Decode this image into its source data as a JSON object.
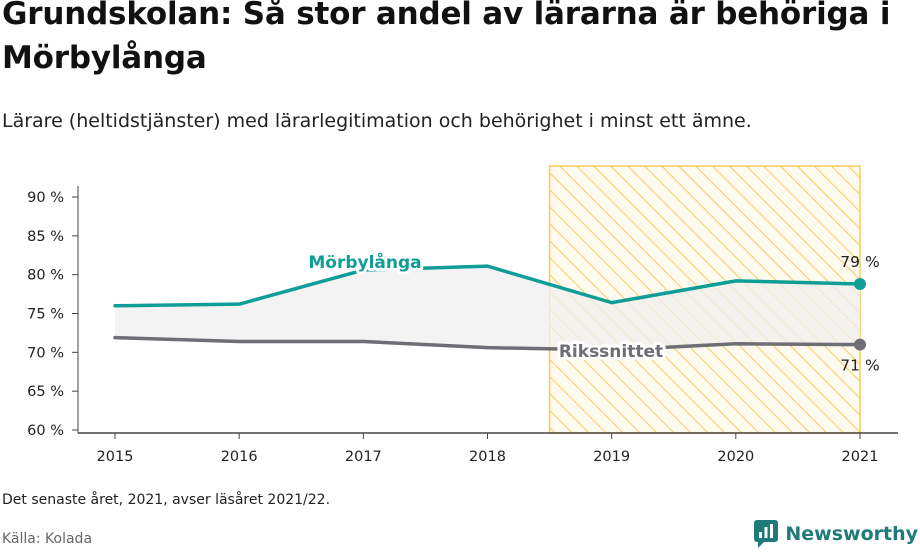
{
  "header": {
    "title": "Grundskolan: Så stor andel av lärarna är behöriga i Mörbylånga",
    "subtitle": "Lärare (heltidstjänster) med lärarlegitimation och behörighet i minst ett ämne."
  },
  "footer": {
    "note": "Det senaste året, 2021, avser läsåret 2021/22.",
    "source": "Källa: Kolada",
    "brand": "Newsworthy"
  },
  "colors": {
    "local": "#0f9e97",
    "national": "#6e6e74",
    "highlight": "#f5cd5a",
    "fill": "#efefef",
    "axis": "#444444"
  },
  "icons": {
    "brand": "newsworthy-logo-icon"
  },
  "chart_data": {
    "type": "line",
    "x": [
      2015,
      2016,
      2017,
      2018,
      2019,
      2020,
      2021
    ],
    "x_tick_labels": [
      "2015",
      "2016",
      "2017",
      "2018",
      "2019",
      "2020",
      "2021"
    ],
    "ylim": [
      60,
      90
    ],
    "y_ticks": [
      60,
      65,
      70,
      75,
      80,
      85,
      90
    ],
    "y_tick_labels": [
      "60 %",
      "65 %",
      "70 %",
      "75 %",
      "80 %",
      "85 %",
      "90 %"
    ],
    "series": [
      {
        "name": "Mörbylånga",
        "values": [
          76.0,
          76.2,
          80.6,
          81.1,
          76.4,
          79.2,
          78.8
        ],
        "end_label": "79 %"
      },
      {
        "name": "Rikssnittet",
        "values": [
          71.9,
          71.4,
          71.4,
          70.6,
          70.3,
          71.1,
          71.0
        ],
        "end_label": "71 %"
      }
    ],
    "highlight_range": [
      2018.5,
      2021
    ],
    "grid": false
  }
}
